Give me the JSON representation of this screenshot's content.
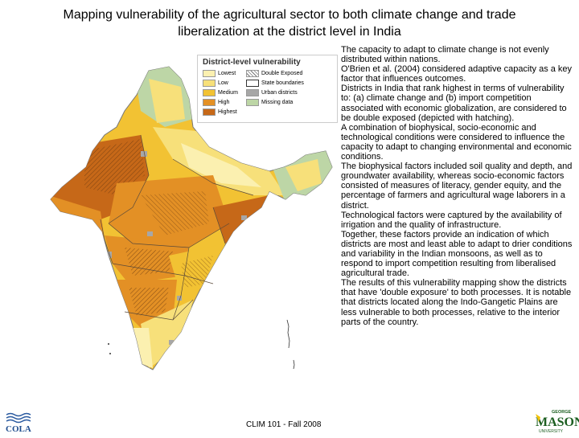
{
  "title": {
    "line1": "Mapping vulnerability of the agricultural sector to both climate change and trade",
    "line2": "liberalization at the district level in India"
  },
  "legend": {
    "title": "District-level vulnerability",
    "items": [
      {
        "label": "Lowest",
        "color": "#fbf0b0"
      },
      {
        "label": "Low",
        "color": "#f7e07a"
      },
      {
        "label": "Medium",
        "color": "#f2c233"
      },
      {
        "label": "High",
        "color": "#e39025"
      },
      {
        "label": "Highest",
        "color": "#c66818"
      },
      {
        "label": "Double Exposed",
        "color": "hatch"
      },
      {
        "label": "State boundaries",
        "color": "#ffffff"
      },
      {
        "label": "Urban districts",
        "color": "#a7a7a7"
      },
      {
        "label": "Missing data",
        "color": "#bdd6a6"
      }
    ]
  },
  "body_paragraphs": [
    "The capacity to adapt to climate change is not evenly distributed within nations.",
    "O'Brien et al. (2004) considered adaptive capacity as a key factor that influences outcomes.",
    "Districts in India that rank highest in terms of vulnerability to: (a) climate change and (b) import competition associated with economic globalization, are considered to be double exposed (depicted with hatching).",
    "A combination of biophysical, socio-economic and technological conditions were considered to influence the capacity to adapt to changing environmental and economic conditions.",
    "The biophysical factors included soil quality and depth, and groundwater availability, whereas socio-economic factors consisted of measures of literacy, gender equity, and the percentage of farmers and agricultural wage laborers in a district.",
    "Technological factors were captured by the availability of irrigation and the quality of infrastructure.",
    "Together, these factors provide an indication of which districts are most and least able to adapt to drier conditions and variability in the Indian monsoons, as well as to respond to import competition resulting from liberalised agricultural trade.",
    "The results of this vulnerability mapping show the districts that have 'double exposure' to both processes. It is notable that districts located along the Indo-Gangetic Plains are less vulnerable to both processes, relative to the interior parts of the country."
  ],
  "footer": "CLIM 101 - Fall 2008",
  "logos": {
    "left": "COLA",
    "right_top": "GEORGE",
    "right_main": "MASON",
    "right_bottom": "UNIVERSITY"
  }
}
